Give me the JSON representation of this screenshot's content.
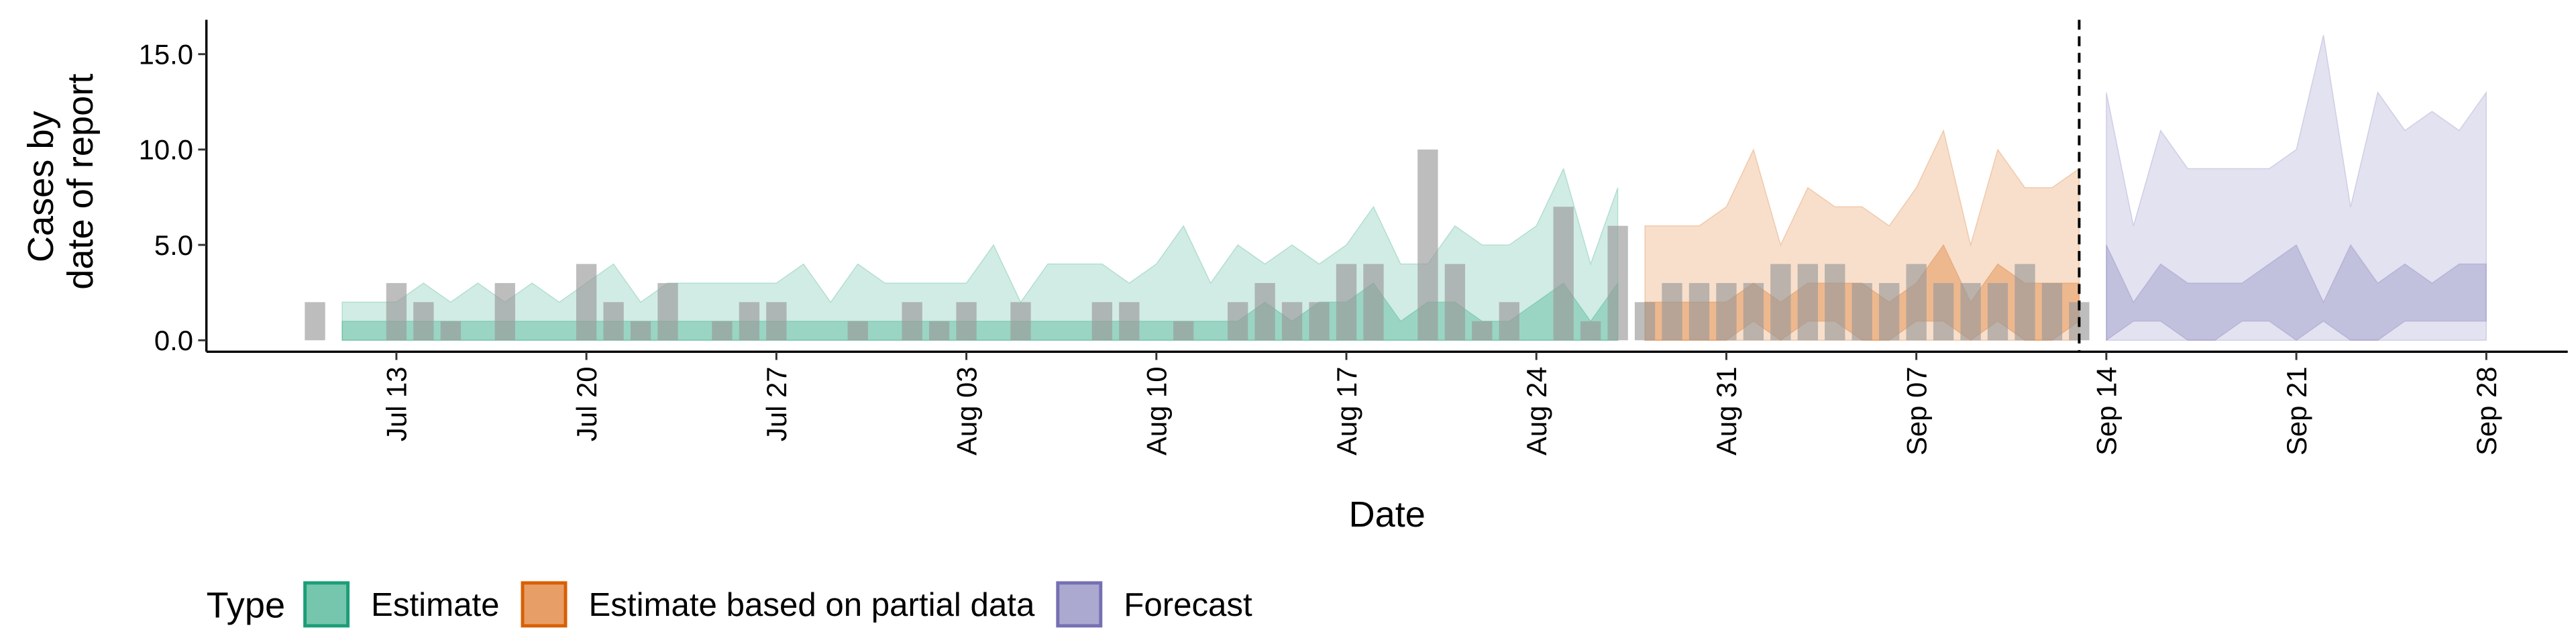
{
  "chart_data": {
    "type": "ribbon",
    "xlabel": "Date",
    "ylabel": [
      "Cases by",
      "date of report"
    ],
    "xlim": [
      "07-06",
      "10-01"
    ],
    "ylim": [
      -0.6,
      16.8
    ],
    "xticks": [
      {
        "value": "07-13",
        "label": "Jul 13"
      },
      {
        "value": "07-20",
        "label": "Jul 20"
      },
      {
        "value": "07-27",
        "label": "Jul 27"
      },
      {
        "value": "08-03",
        "label": "Aug 03"
      },
      {
        "value": "08-10",
        "label": "Aug 10"
      },
      {
        "value": "08-17",
        "label": "Aug 17"
      },
      {
        "value": "08-24",
        "label": "Aug 24"
      },
      {
        "value": "08-31",
        "label": "Aug 31"
      },
      {
        "value": "09-07",
        "label": "Sep 07"
      },
      {
        "value": "09-14",
        "label": "Sep 14"
      },
      {
        "value": "09-21",
        "label": "Sep 21"
      },
      {
        "value": "09-28",
        "label": "Sep 28"
      }
    ],
    "yticks": [
      {
        "value": 0,
        "label": "0.0"
      },
      {
        "value": 5,
        "label": "5.0"
      },
      {
        "value": 10,
        "label": "10.0"
      },
      {
        "value": 15,
        "label": "15.0"
      }
    ],
    "vline": "09-13",
    "legend_title": "Type",
    "legend_position": "bottom",
    "reported": {
      "color": "#999999",
      "x": [
        "07-10",
        "07-11",
        "07-12",
        "07-13",
        "07-14",
        "07-15",
        "07-16",
        "07-17",
        "07-18",
        "07-19",
        "07-20",
        "07-21",
        "07-22",
        "07-23",
        "07-24",
        "07-25",
        "07-26",
        "07-27",
        "07-28",
        "07-29",
        "07-30",
        "07-31",
        "08-01",
        "08-02",
        "08-03",
        "08-04",
        "08-05",
        "08-06",
        "08-07",
        "08-08",
        "08-09",
        "08-10",
        "08-11",
        "08-12",
        "08-13",
        "08-14",
        "08-15",
        "08-16",
        "08-17",
        "08-18",
        "08-19",
        "08-20",
        "08-21",
        "08-22",
        "08-23",
        "08-24",
        "08-25",
        "08-26",
        "08-27",
        "08-28",
        "08-29",
        "08-30",
        "08-31",
        "09-01",
        "09-02",
        "09-03",
        "09-04",
        "09-05",
        "09-06",
        "09-07",
        "09-08",
        "09-09",
        "09-10",
        "09-11",
        "09-12",
        "09-13"
      ],
      "values": [
        2,
        0,
        0,
        3,
        2,
        1,
        0,
        3,
        0,
        0,
        4,
        2,
        1,
        3,
        0,
        1,
        2,
        2,
        0,
        0,
        1,
        0,
        2,
        1,
        2,
        0,
        2,
        0,
        0,
        2,
        2,
        0,
        1,
        0,
        2,
        3,
        2,
        2,
        4,
        4,
        0,
        10,
        4,
        1,
        2,
        0,
        7,
        1,
        6,
        2,
        3,
        3,
        3,
        3,
        4,
        4,
        4,
        3,
        3,
        4,
        3,
        3,
        3,
        4,
        3,
        2
      ]
    },
    "series": [
      {
        "name": "Estimate",
        "color": "#1b9e77",
        "x": [
          "07-11",
          "07-12",
          "07-13",
          "07-14",
          "07-15",
          "07-16",
          "07-17",
          "07-18",
          "07-19",
          "07-20",
          "07-21",
          "07-22",
          "07-23",
          "07-24",
          "07-25",
          "07-26",
          "07-27",
          "07-28",
          "07-29",
          "07-30",
          "07-31",
          "08-01",
          "08-02",
          "08-03",
          "08-04",
          "08-05",
          "08-06",
          "08-07",
          "08-08",
          "08-09",
          "08-10",
          "08-11",
          "08-12",
          "08-13",
          "08-14",
          "08-15",
          "08-16",
          "08-17",
          "08-18",
          "08-19",
          "08-20",
          "08-21",
          "08-22",
          "08-23",
          "08-24",
          "08-25",
          "08-26",
          "08-27"
        ],
        "lower_90": [
          0,
          0,
          0,
          0,
          0,
          0,
          0,
          0,
          0,
          0,
          0,
          0,
          0,
          0,
          0,
          0,
          0,
          0,
          0,
          0,
          0,
          0,
          0,
          0,
          0,
          0,
          0,
          0,
          0,
          0,
          0,
          0,
          0,
          0,
          0,
          0,
          0,
          0,
          0,
          0,
          0,
          0,
          0,
          0,
          0,
          0,
          0,
          0
        ],
        "upper_90": [
          2,
          2,
          2,
          3,
          2,
          3,
          2,
          3,
          2,
          3,
          4,
          2,
          3,
          3,
          3,
          3,
          3,
          4,
          2,
          4,
          3,
          3,
          3,
          3,
          5,
          2,
          4,
          4,
          4,
          3,
          4,
          6,
          3,
          5,
          4,
          5,
          4,
          5,
          7,
          4,
          4,
          6,
          5,
          5,
          6,
          9,
          4,
          8
        ],
        "lower_50": [
          0,
          0,
          0,
          0,
          0,
          0,
          0,
          0,
          0,
          0,
          0,
          0,
          0,
          0,
          0,
          0,
          0,
          0,
          0,
          0,
          0,
          0,
          0,
          0,
          0,
          0,
          0,
          0,
          0,
          0,
          0,
          0,
          0,
          0,
          0,
          0,
          0,
          0,
          0,
          0,
          0,
          0,
          0,
          0,
          0,
          0,
          0,
          0
        ],
        "upper_50": [
          1,
          1,
          1,
          1,
          1,
          1,
          1,
          1,
          1,
          1,
          1,
          1,
          1,
          1,
          1,
          1,
          1,
          1,
          1,
          1,
          1,
          1,
          1,
          1,
          1,
          1,
          1,
          1,
          1,
          1,
          1,
          1,
          1,
          1,
          2,
          1,
          2,
          2,
          3,
          1,
          2,
          2,
          1,
          1,
          2,
          3,
          1,
          3
        ]
      },
      {
        "name": "Estimate based on partial data",
        "color": "#d95f02",
        "x": [
          "08-28",
          "08-29",
          "08-30",
          "08-31",
          "09-01",
          "09-02",
          "09-03",
          "09-04",
          "09-05",
          "09-06",
          "09-07",
          "09-08",
          "09-09",
          "09-10",
          "09-11",
          "09-12",
          "09-13"
        ],
        "lower_90": [
          0,
          0,
          0,
          0,
          0,
          0,
          0,
          0,
          0,
          0,
          0,
          0,
          0,
          0,
          0,
          0,
          0
        ],
        "upper_90": [
          6,
          6,
          6,
          7,
          10,
          5,
          8,
          7,
          7,
          6,
          8,
          11,
          5,
          10,
          8,
          8,
          9
        ],
        "lower_50": [
          0,
          0,
          0,
          0,
          1,
          0,
          1,
          1,
          0,
          0,
          1,
          1,
          0,
          1,
          0,
          0,
          1
        ],
        "upper_50": [
          2,
          2,
          2,
          2,
          3,
          2,
          3,
          3,
          3,
          2,
          3,
          5,
          2,
          4,
          3,
          3,
          3
        ]
      },
      {
        "name": "Forecast",
        "color": "#7570b3",
        "x": [
          "09-14",
          "09-15",
          "09-16",
          "09-17",
          "09-18",
          "09-19",
          "09-20",
          "09-21",
          "09-22",
          "09-23",
          "09-24",
          "09-25",
          "09-26",
          "09-27",
          "09-28"
        ],
        "lower_90": [
          0,
          0,
          0,
          0,
          0,
          0,
          0,
          0,
          0,
          0,
          0,
          0,
          0,
          0,
          0
        ],
        "upper_90": [
          13,
          6,
          11,
          9,
          9,
          9,
          9,
          10,
          16,
          7,
          13,
          11,
          12,
          11,
          13
        ],
        "lower_50": [
          0,
          1,
          1,
          0,
          0,
          1,
          1,
          0,
          1,
          0,
          0,
          1,
          1,
          1,
          1
        ],
        "upper_50": [
          5,
          2,
          4,
          3,
          3,
          3,
          4,
          5,
          2,
          5,
          3,
          4,
          3,
          4,
          4
        ]
      }
    ]
  }
}
